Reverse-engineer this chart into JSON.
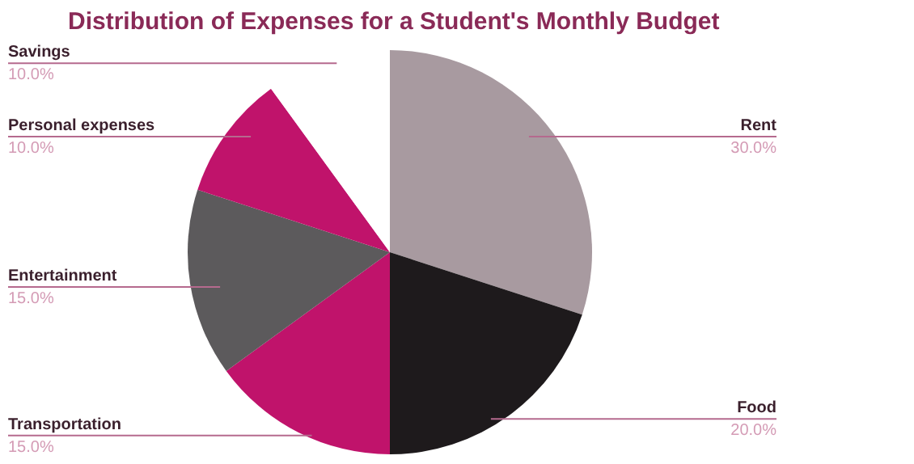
{
  "chart_data": {
    "type": "pie",
    "title": "Distribution of Expenses for a Student's Monthly Budget",
    "categories": [
      "Rent",
      "Food",
      "Transportation",
      "Entertainment",
      "Personal expenses",
      "Savings"
    ],
    "values": [
      30,
      20,
      15,
      15,
      10,
      10
    ],
    "value_labels": [
      "30.0%",
      "20.0%",
      "15.0%",
      "15.0%",
      "10.0%",
      "10.0%"
    ],
    "colors": [
      "#a89aa0",
      "#1e1a1c",
      "#c0136b",
      "#5c5a5c",
      "#c0136b",
      "#ffffff"
    ]
  }
}
